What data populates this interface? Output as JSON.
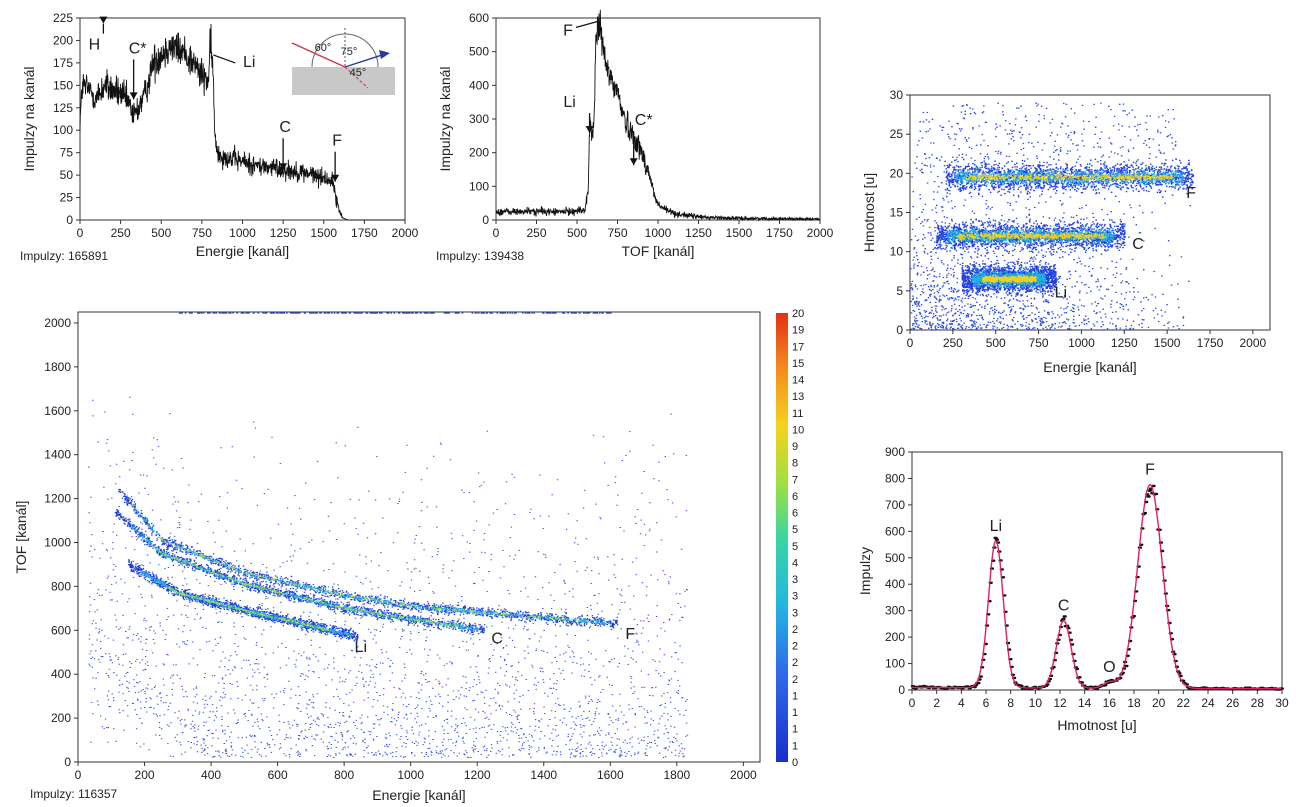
{
  "chart_data": [
    {
      "id": "energy",
      "type": "line",
      "xlabel": "Energie [kanál]",
      "ylabel": "Impulzy na kanál",
      "xlim": [
        0,
        2000
      ],
      "ylim": [
        0,
        225
      ],
      "xticks": [
        "0",
        "250",
        "500",
        "750",
        "1000",
        "1250",
        "1500",
        "1750",
        "2000"
      ],
      "yticks": [
        "0",
        "25",
        "50",
        "75",
        "100",
        "125",
        "150",
        "175",
        "200",
        "225"
      ],
      "counts": "Impulzy: 165891",
      "series": [
        {
          "x": [
            0,
            15,
            60,
            100,
            150,
            200,
            250,
            300,
            330,
            360,
            400,
            450,
            500,
            550,
            600,
            650,
            700,
            750,
            790,
            800,
            810,
            820,
            830,
            850,
            900,
            1000,
            1100,
            1200,
            1300,
            1400,
            1500,
            1540,
            1560,
            1580,
            1600,
            1620,
            1650,
            1700,
            1800,
            1900,
            2000
          ],
          "y": [
            110,
            150,
            145,
            135,
            150,
            145,
            140,
            130,
            115,
            125,
            140,
            175,
            185,
            195,
            190,
            185,
            175,
            160,
            155,
            190,
            185,
            160,
            90,
            75,
            70,
            65,
            60,
            58,
            55,
            52,
            47,
            45,
            40,
            20,
            8,
            2,
            0,
            0,
            0,
            0,
            0
          ]
        }
      ],
      "annotations": [
        {
          "label": "H",
          "x": 70,
          "y": 212
        },
        {
          "label": "C*",
          "x": 330,
          "y": 190
        },
        {
          "label": "Li",
          "x": 820,
          "y": 175
        },
        {
          "label": "C",
          "x": 1250,
          "y": 100
        },
        {
          "label": "F",
          "x": 1570,
          "y": 85
        }
      ],
      "inset": {
        "angles": [
          "60°",
          "75°",
          "45°"
        ]
      }
    },
    {
      "id": "tof",
      "type": "line",
      "xlabel": "TOF [kanál]",
      "ylabel": "Impulzy na kanál",
      "xlim": [
        0,
        2000
      ],
      "ylim": [
        0,
        600
      ],
      "xticks": [
        "0",
        "250",
        "500",
        "750",
        "1000",
        "1250",
        "1500",
        "1750",
        "2000"
      ],
      "yticks": [
        "0",
        "100",
        "200",
        "300",
        "400",
        "500",
        "600"
      ],
      "counts": "Impulzy: 139438",
      "series": [
        {
          "x": [
            0,
            100,
            200,
            300,
            400,
            500,
            550,
            570,
            580,
            590,
            600,
            610,
            620,
            640,
            650,
            660,
            680,
            700,
            750,
            800,
            850,
            900,
            950,
            980,
            1000,
            1050,
            1100,
            1200,
            1300,
            1500,
            1750,
            2000
          ],
          "y": [
            25,
            24,
            26,
            25,
            24,
            27,
            30,
            100,
            300,
            260,
            250,
            380,
            560,
            590,
            550,
            500,
            460,
            430,
            380,
            290,
            250,
            200,
            130,
            70,
            45,
            30,
            20,
            12,
            8,
            5,
            4,
            3
          ]
        }
      ],
      "annotations": [
        {
          "label": "F",
          "x": 630,
          "y": 590
        },
        {
          "label": "Li",
          "x": 590,
          "y": 270
        },
        {
          "label": "C*",
          "x": 850,
          "y": 240
        }
      ]
    },
    {
      "id": "tof_energy_map",
      "type": "heatmap",
      "xlabel": "Energie [kanál]",
      "ylabel": "TOF [kanál]",
      "xlim": [
        0,
        2050
      ],
      "ylim": [
        0,
        2050
      ],
      "xticks": [
        "0",
        "200",
        "400",
        "600",
        "800",
        "1000",
        "1200",
        "1400",
        "1600",
        "1800",
        "2000"
      ],
      "yticks": [
        "0",
        "200",
        "400",
        "600",
        "800",
        "1000",
        "1200",
        "1400",
        "1600",
        "1800",
        "2000"
      ],
      "counts": "Impulzy: 116357",
      "colorbar": [
        "20",
        "19",
        "17",
        "15",
        "14",
        "13",
        "11",
        "10",
        "9",
        "8",
        "7",
        "6",
        "6",
        "5",
        "5",
        "4",
        "3",
        "3",
        "3",
        "2",
        "2",
        "2",
        "2",
        "1",
        "1",
        "1",
        "1",
        "0"
      ],
      "bands": [
        {
          "label": "Li",
          "x": [
            150,
            300,
            500,
            700,
            840
          ],
          "y": [
            900,
            770,
            690,
            620,
            570
          ]
        },
        {
          "label": "C",
          "x": [
            110,
            250,
            500,
            800,
            1000,
            1220
          ],
          "y": [
            1140,
            950,
            810,
            700,
            650,
            600
          ]
        },
        {
          "label": "F",
          "x": [
            120,
            250,
            500,
            800,
            1000,
            1300,
            1620
          ],
          "y": [
            1240,
            1010,
            860,
            760,
            710,
            670,
            630
          ]
        }
      ],
      "annotations": [
        {
          "label": "Li",
          "x": 850,
          "y": 500
        },
        {
          "label": "C",
          "x": 1260,
          "y": 540
        },
        {
          "label": "F",
          "x": 1660,
          "y": 560
        }
      ]
    },
    {
      "id": "mass_map",
      "type": "scatter",
      "xlabel": "Energie [kanál]",
      "ylabel": "Hmotnost [u]",
      "xlim": [
        0,
        2100
      ],
      "ylim": [
        0,
        30
      ],
      "xticks": [
        "0",
        "250",
        "500",
        "750",
        "1000",
        "1250",
        "1500",
        "1750",
        "2000"
      ],
      "yticks": [
        "0",
        "5",
        "10",
        "15",
        "20",
        "25",
        "30"
      ],
      "bands": [
        {
          "label": "F",
          "x": [
            200,
            1650
          ],
          "y": 19.5
        },
        {
          "label": "C",
          "x": [
            150,
            1250
          ],
          "y": 12
        },
        {
          "label": "Li",
          "x": [
            300,
            850
          ],
          "y": 6.5
        }
      ],
      "annotations": [
        {
          "label": "F",
          "x": 1640,
          "y": 17.5
        },
        {
          "label": "C",
          "x": 1330,
          "y": 11
        },
        {
          "label": "Li",
          "x": 880,
          "y": 4.8
        }
      ]
    },
    {
      "id": "mass_spectrum",
      "type": "line",
      "xlabel": "Hmotnost [u]",
      "ylabel": "Impulzy",
      "xlim": [
        0,
        30
      ],
      "ylim": [
        0,
        900
      ],
      "xticks": [
        "0",
        "2",
        "4",
        "6",
        "8",
        "10",
        "12",
        "14",
        "16",
        "18",
        "20",
        "22",
        "24",
        "26",
        "28",
        "30"
      ],
      "yticks": [
        "0",
        "100",
        "200",
        "300",
        "400",
        "500",
        "600",
        "700",
        "800",
        "900"
      ],
      "peaks": [
        {
          "label": "Li",
          "center": 6.8,
          "height": 555,
          "sigma": 0.6
        },
        {
          "label": "C",
          "center": 12.3,
          "height": 255,
          "sigma": 0.6
        },
        {
          "label": "O",
          "center": 16.0,
          "height": 22,
          "sigma": 0.5
        },
        {
          "label": "F",
          "center": 19.3,
          "height": 770,
          "sigma": 1.0
        }
      ],
      "baseline": 10
    }
  ]
}
